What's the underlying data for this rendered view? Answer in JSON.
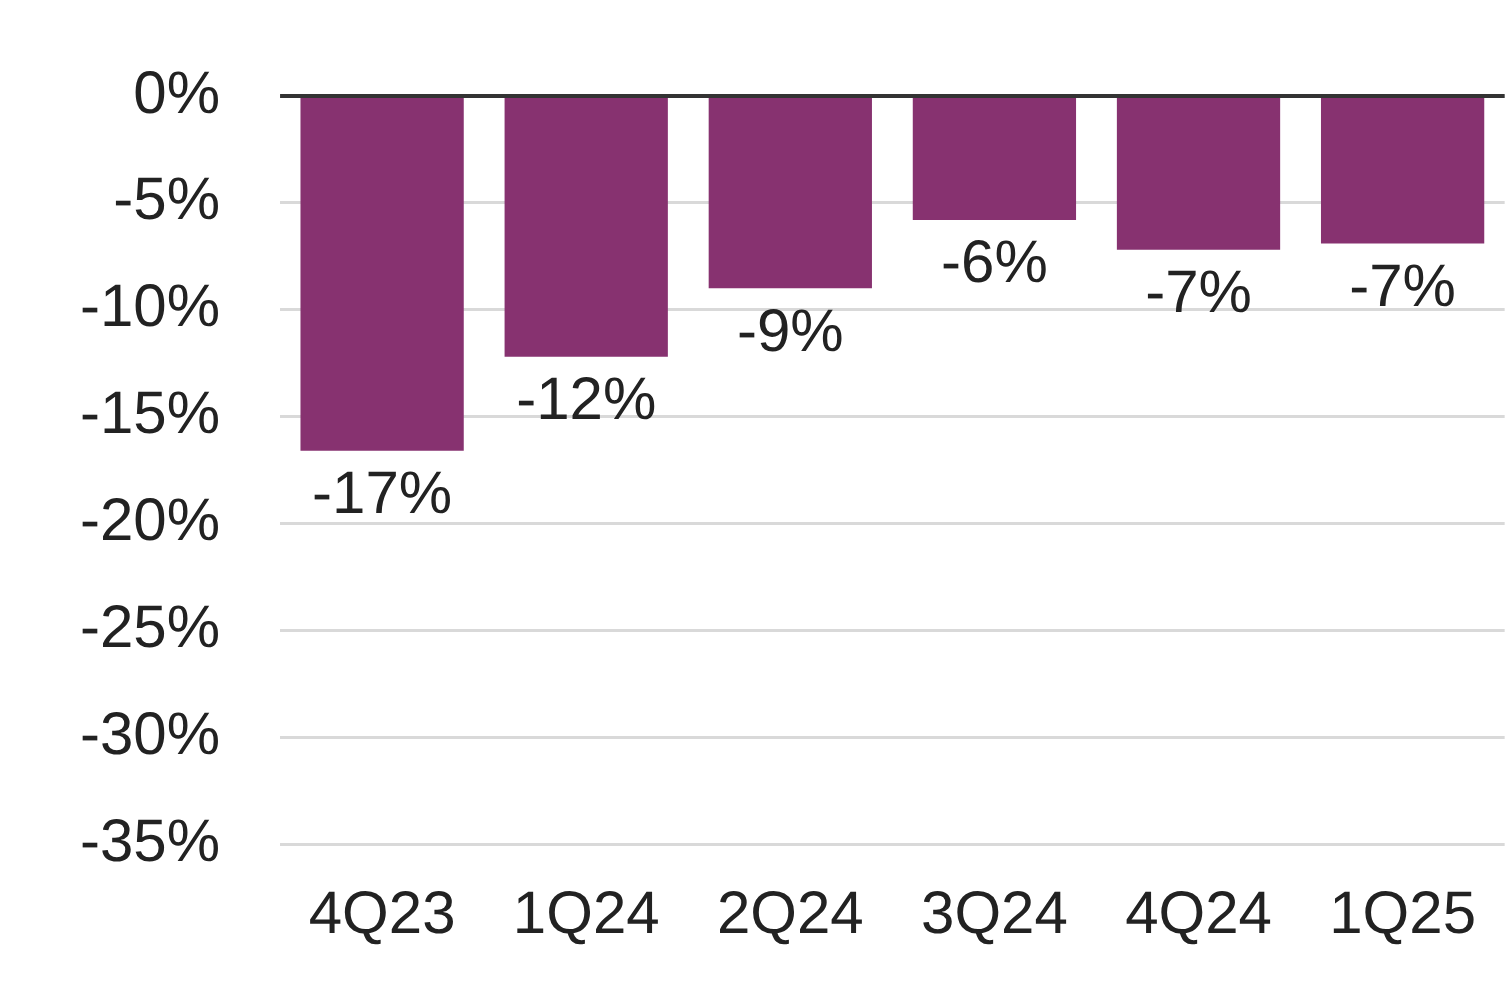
{
  "chart_data": {
    "type": "bar",
    "categories": [
      "4Q23",
      "1Q24",
      "2Q24",
      "3Q24",
      "4Q24",
      "1Q25"
    ],
    "values": [
      -16.6,
      -12.2,
      -9,
      -5.8,
      -7.2,
      -6.9
    ],
    "value_labels": [
      "-17%",
      "-12%",
      "-9%",
      "-6%",
      "-7%",
      "-7%"
    ],
    "color": "#873270",
    "ylim": [
      -35,
      0
    ],
    "yticks": [
      {
        "value": 0,
        "label": "0%"
      },
      {
        "value": -5,
        "label": "-5%"
      },
      {
        "value": -10,
        "label": "-10%"
      },
      {
        "value": -15,
        "label": "-15%"
      },
      {
        "value": -20,
        "label": "-20%"
      },
      {
        "value": -25,
        "label": "-25%"
      },
      {
        "value": -30,
        "label": "-30%"
      },
      {
        "value": -35,
        "label": "-35%"
      }
    ],
    "grid": "y"
  }
}
